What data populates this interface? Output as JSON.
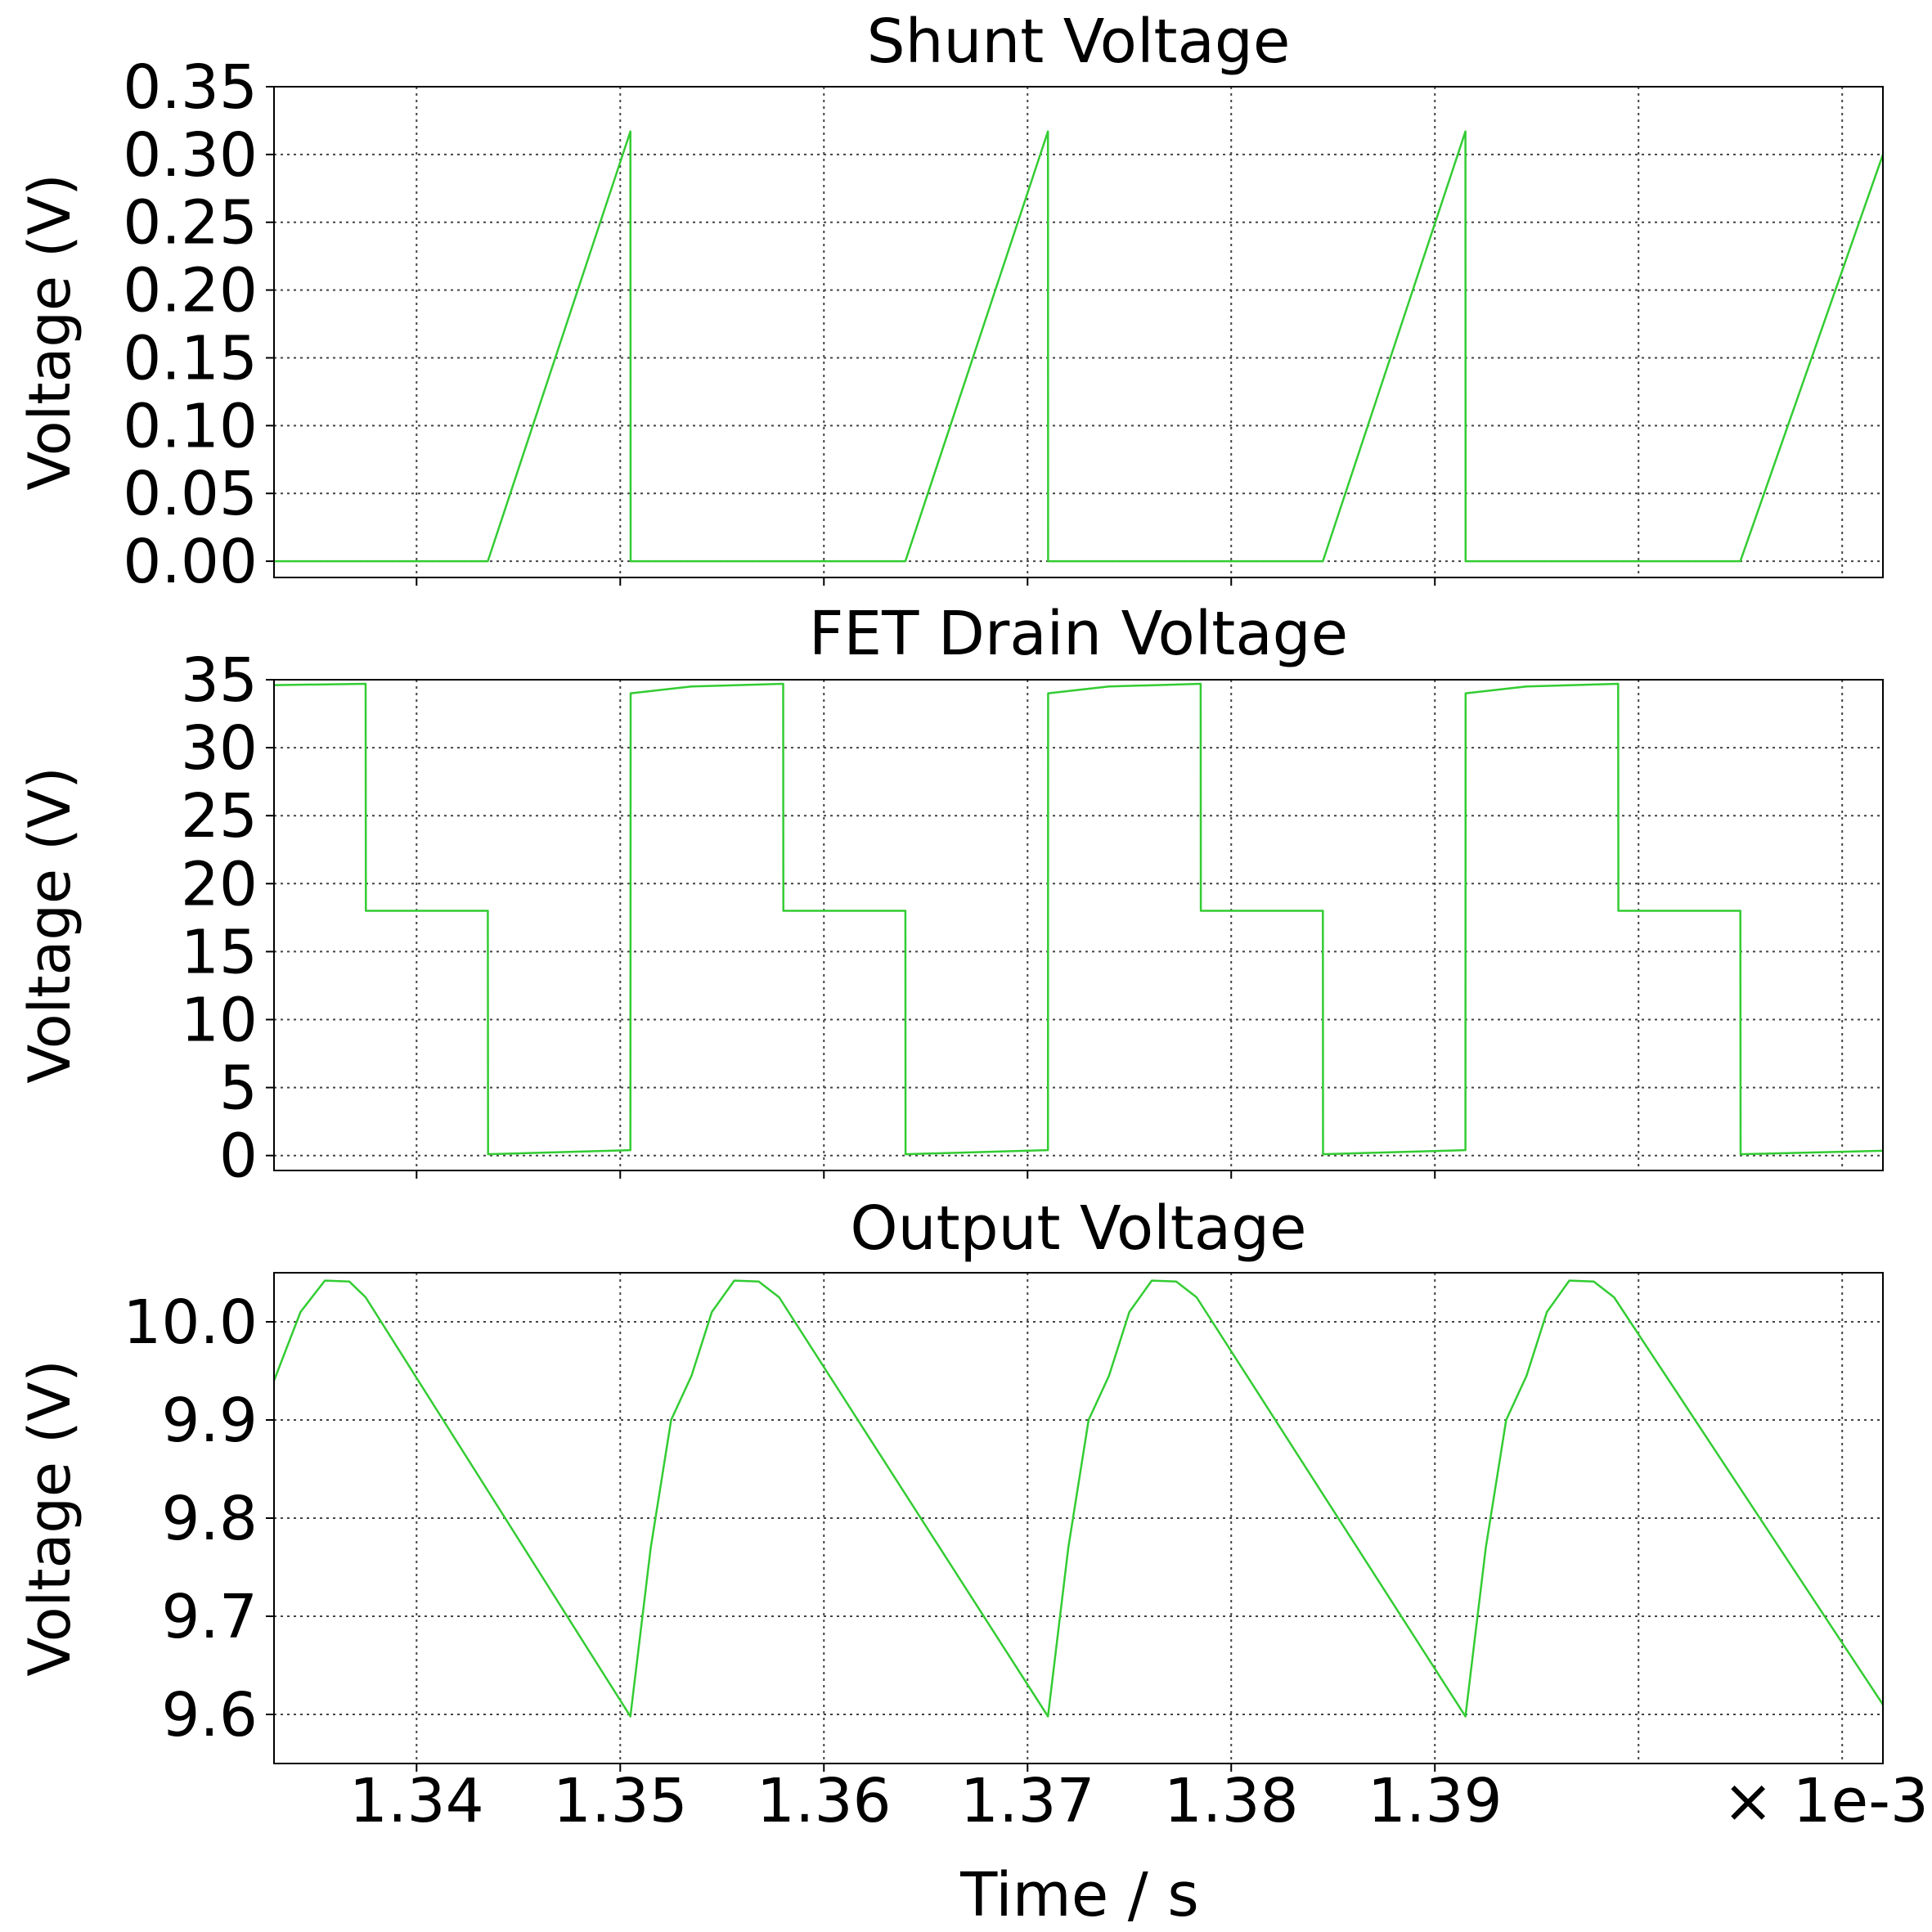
{
  "chart_data": [
    {
      "type": "line",
      "title": "Shunt Voltage",
      "ylabel": "Voltage (V)",
      "ylim": [
        -0.012,
        0.35
      ],
      "yticks": [
        0.0,
        0.05,
        0.1,
        0.15,
        0.2,
        0.25,
        0.3,
        0.35
      ],
      "ytick_labels": [
        "0.00",
        "0.05",
        "0.10",
        "0.15",
        "0.20",
        "0.25",
        "0.30",
        "0.35"
      ],
      "grid": true,
      "series": [
        {
          "x": [
            1.333,
            1.3435,
            1.3505,
            1.35051,
            1.364,
            1.371,
            1.37101,
            1.3845,
            1.3915,
            1.39151,
            1.405,
            1.412
          ],
          "y": [
            0.0,
            0.0,
            0.317,
            0.0,
            0.0,
            0.317,
            0.0,
            0.0,
            0.317,
            0.0,
            0.0,
            0.3
          ]
        }
      ]
    },
    {
      "type": "line",
      "title": "FET Drain Voltage",
      "ylabel": "Voltage (V)",
      "ylim": [
        -1.1,
        35
      ],
      "yticks": [
        0,
        5,
        10,
        15,
        20,
        25,
        30,
        35
      ],
      "ytick_labels": [
        "0",
        "5",
        "10",
        "15",
        "20",
        "25",
        "30",
        "35"
      ],
      "grid": true,
      "series": [
        {
          "x": [
            1.333,
            1.3375,
            1.33751,
            1.3435,
            1.34351,
            1.3505,
            1.35051,
            1.3535,
            1.358,
            1.35801,
            1.364,
            1.36401,
            1.371,
            1.37101,
            1.374,
            1.3785,
            1.37851,
            1.3845,
            1.38451,
            1.3915,
            1.39151,
            1.3945,
            1.399,
            1.39901,
            1.405,
            1.40501,
            1.412
          ],
          "y": [
            34.6,
            34.7,
            18.0,
            18.0,
            0.1,
            0.4,
            34.0,
            34.5,
            34.7,
            18.0,
            18.0,
            0.1,
            0.4,
            34.0,
            34.5,
            34.7,
            18.0,
            18.0,
            0.1,
            0.4,
            34.0,
            34.5,
            34.7,
            18.0,
            18.0,
            0.1,
            0.35
          ]
        }
      ]
    },
    {
      "type": "line",
      "title": "Output Voltage",
      "ylabel": "Voltage (V)",
      "ylim": [
        9.55,
        10.05
      ],
      "yticks": [
        9.6,
        9.7,
        9.8,
        9.9,
        10.0
      ],
      "ytick_labels": [
        "9.6",
        "9.7",
        "9.8",
        "9.9",
        "10.0"
      ],
      "grid": true,
      "series": [
        {
          "x": [
            1.333,
            1.3343,
            1.3355,
            1.3367,
            1.3375,
            1.3505,
            1.3515,
            1.3525,
            1.3535,
            1.3545,
            1.3556,
            1.3568,
            1.3578,
            1.371,
            1.372,
            1.373,
            1.374,
            1.375,
            1.3761,
            1.3773,
            1.3783,
            1.3915,
            1.3925,
            1.3935,
            1.3945,
            1.3955,
            1.3966,
            1.3978,
            1.3988,
            1.412
          ],
          "y": [
            9.94,
            10.01,
            10.042,
            10.041,
            10.025,
            9.598,
            9.77,
            9.9,
            9.945,
            10.01,
            10.042,
            10.041,
            10.025,
            9.598,
            9.77,
            9.9,
            9.945,
            10.01,
            10.042,
            10.041,
            10.025,
            9.598,
            9.77,
            9.9,
            9.945,
            10.01,
            10.042,
            10.041,
            10.025,
            9.61
          ]
        }
      ]
    }
  ],
  "x_axis": {
    "label": "Time / s",
    "xlim": [
      1.333,
      1.412
    ],
    "ticks": [
      1.34,
      1.35,
      1.36,
      1.37,
      1.38,
      1.39
    ],
    "tick_labels": [
      "1.34",
      "1.35",
      "1.36",
      "1.37",
      "1.38",
      "1.39"
    ],
    "minor_grid": [
      1.4,
      1.41
    ],
    "offset_text": "× 1e-3"
  },
  "colors": {
    "trace": "#33cc33"
  }
}
